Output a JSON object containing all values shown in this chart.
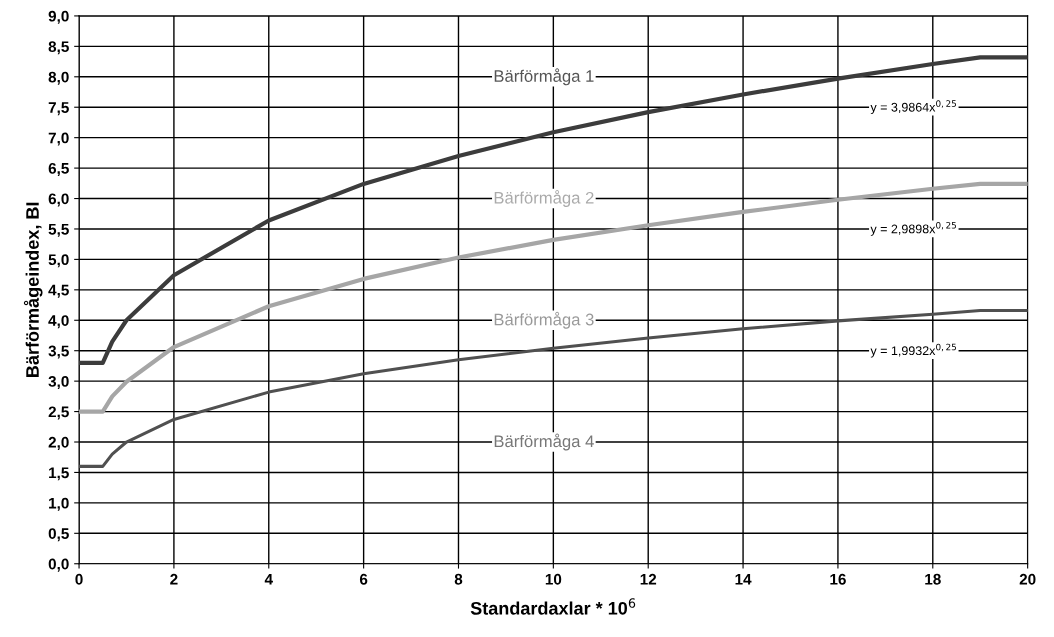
{
  "chart_data": {
    "type": "line",
    "xlabel": "Standardaxlar * 10$^{6}$",
    "ylabel": "Bärförmågeindex, BI",
    "series": [
      {
        "color": "#3c3c3c",
        "x": [
          0,
          0.5,
          0.7,
          1,
          2,
          4,
          6,
          8,
          10,
          12,
          14,
          16,
          18,
          19,
          20
        ],
        "values": [
          3.3,
          3.3,
          3.65,
          4.0,
          4.74,
          5.64,
          6.24,
          6.7,
          7.09,
          7.42,
          7.71,
          7.97,
          8.21,
          8.32,
          8.32
        ]
      },
      {
        "color": "#a6a6a6",
        "x": [
          0,
          0.5,
          0.7,
          1,
          2,
          4,
          6,
          8,
          10,
          12,
          14,
          16,
          18,
          19,
          20
        ],
        "values": [
          2.5,
          2.5,
          2.75,
          2.99,
          3.56,
          4.23,
          4.68,
          5.03,
          5.32,
          5.56,
          5.78,
          5.98,
          6.16,
          6.24,
          6.24
        ]
      },
      {
        "color": "#505050",
        "x": [
          0,
          0.5,
          0.7,
          1,
          2,
          4,
          6,
          8,
          10,
          12,
          14,
          16,
          18,
          19,
          20
        ],
        "values": [
          1.6,
          1.6,
          1.8,
          2.0,
          2.37,
          2.82,
          3.12,
          3.35,
          3.54,
          3.71,
          3.86,
          3.99,
          4.1,
          4.16,
          4.16
        ]
      }
    ],
    "annotations": [
      "Bärförmåga 1",
      "y = 3,9864x$^{0,25}$",
      "Bärförmåga 2",
      "y = 2,9898x$^{0,25}$",
      "Bärförmåga 3",
      "y = 1,9932x$^{0,25}$",
      "Bärförmåga 4"
    ],
    "xlim": [
      0,
      20
    ],
    "xticks": [
      0,
      2,
      4,
      6,
      8,
      10,
      12,
      14,
      16,
      18,
      20
    ],
    "ylim": [
      0,
      9
    ],
    "yticks": [
      {
        "value": 0,
        "label": "0,0"
      },
      {
        "value": 0.5,
        "label": "0,5"
      },
      {
        "value": 1,
        "label": "1,0"
      },
      {
        "value": 1.5,
        "label": "1,5"
      },
      {
        "value": 2,
        "label": "2,0"
      },
      {
        "value": 2.5,
        "label": "2,5"
      },
      {
        "value": 3,
        "label": "3,0"
      },
      {
        "value": 3.5,
        "label": "3,5"
      },
      {
        "value": 4,
        "label": "4,0"
      },
      {
        "value": 4.5,
        "label": "4,5"
      },
      {
        "value": 5,
        "label": "5,0"
      },
      {
        "value": 5.5,
        "label": "5,5"
      },
      {
        "value": 6,
        "label": "6,0"
      },
      {
        "value": 6.5,
        "label": "6,5"
      },
      {
        "value": 7,
        "label": "7,0"
      },
      {
        "value": 7.5,
        "label": "7,5"
      },
      {
        "value": 8,
        "label": "8,0"
      },
      {
        "value": 8.5,
        "label": "8,5"
      },
      {
        "value": 9,
        "label": "9,0"
      }
    ],
    "grid": true
  }
}
